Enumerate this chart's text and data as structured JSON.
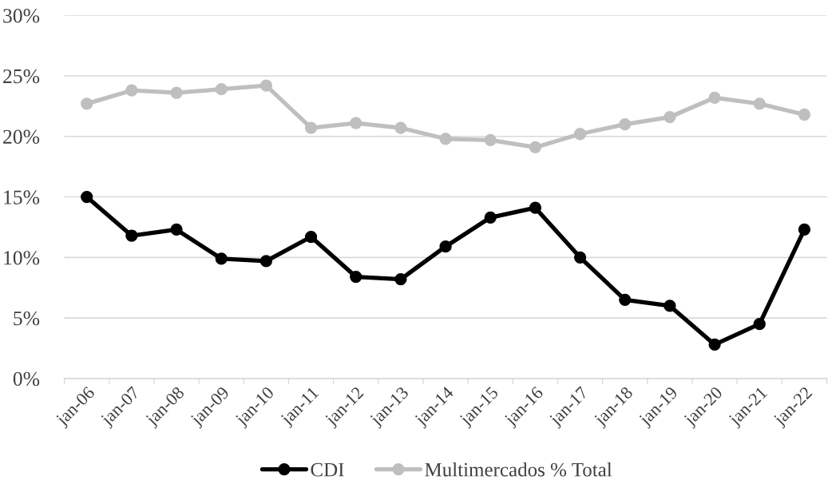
{
  "chart_data": {
    "type": "line",
    "categories": [
      "jan-06",
      "jan-07",
      "jan-08",
      "jan-09",
      "jan-10",
      "jan-11",
      "jan-12",
      "jan-13",
      "jan-14",
      "jan-15",
      "jan-16",
      "jan-17",
      "jan-18",
      "jan-19",
      "jan-20",
      "jan-21",
      "jan-22"
    ],
    "series": [
      {
        "name": "CDI",
        "color": "#000000",
        "values": [
          15.0,
          11.8,
          12.3,
          9.9,
          9.7,
          11.7,
          8.4,
          8.2,
          10.9,
          13.3,
          14.1,
          10.0,
          6.5,
          6.0,
          2.8,
          4.5,
          12.3
        ]
      },
      {
        "name": "Multimercados % Total",
        "color": "#bfbfbf",
        "values": [
          22.7,
          23.8,
          23.6,
          23.9,
          24.2,
          20.7,
          21.1,
          20.7,
          19.8,
          19.7,
          19.1,
          20.2,
          21.0,
          21.6,
          23.2,
          22.7,
          21.8
        ]
      }
    ],
    "ylim": [
      0,
      30
    ],
    "yticks": [
      {
        "value": 0,
        "label": "0%"
      },
      {
        "value": 5,
        "label": "5%"
      },
      {
        "value": 10,
        "label": "10%"
      },
      {
        "value": 15,
        "label": "15%"
      },
      {
        "value": 20,
        "label": "20%"
      },
      {
        "value": 25,
        "label": "25%"
      },
      {
        "value": 30,
        "label": "30%"
      }
    ],
    "grid": "y",
    "legend": "bottom",
    "marker": "circle",
    "line_style": "solid"
  }
}
